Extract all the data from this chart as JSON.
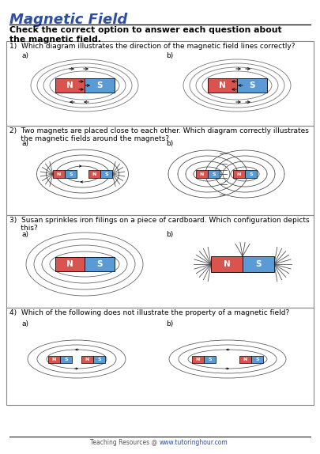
{
  "title": "Magnetic Field",
  "subtitle": "Check the correct option to answer each question about\nthe magnetic field.",
  "title_color": "#2e4ea0",
  "background": "#ffffff",
  "border_color": "#888888",
  "red_color": "#d9534f",
  "blue_color": "#5b9bd5",
  "q1_text": "1)  Which diagram illustrates the direction of the magnetic field lines correctly?",
  "q2_text": "2)  Two magnets are placed close to each other. Which diagram correctly illustrates\n     the magnetic fields around the magnets?",
  "q3_text": "3)  Susan sprinkles iron filings on a piece of cardboard. Which configuration depicts\n     this?",
  "q4_text": "4)  Which of the following does not illustrate the property of a magnetic field?",
  "footer": "Teaching Resources @ www.tutoringhour.com",
  "footer_url_color": "#2e4ea0"
}
